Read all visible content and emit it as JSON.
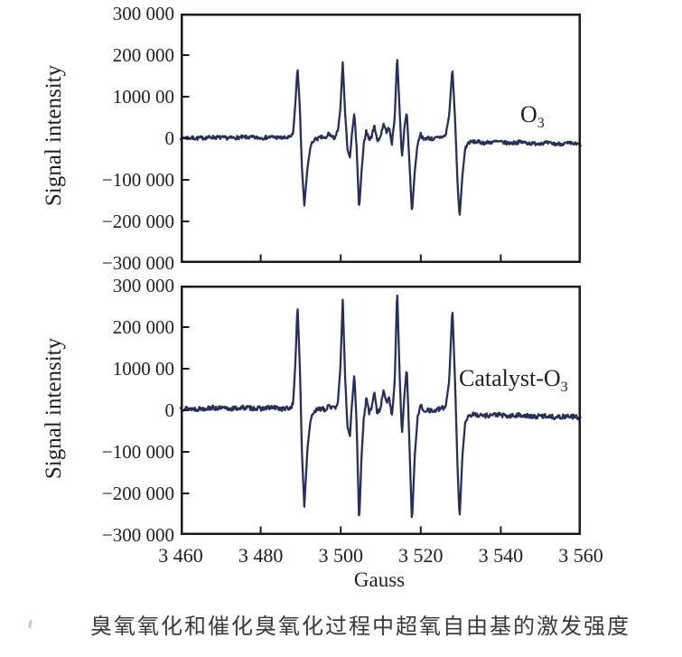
{
  "figure": {
    "ylabel": "Signal intensity",
    "xlabel": "Gauss",
    "y_ticks": [
      "300 000",
      "200 000",
      "1000 00",
      "0",
      "−100 000",
      "−200 000",
      "−300 000"
    ],
    "x_ticks": [
      "3 460",
      "3 480",
      "3 500",
      "3 520",
      "3 540",
      "3 560"
    ],
    "panels": [
      {
        "label_base": "O",
        "label_sub": "3"
      },
      {
        "label_base": "Catalyst-O",
        "label_sub": "3"
      }
    ],
    "caption": "臭氧氧化和催化臭氧化过程中超氧自由基的激发强度"
  },
  "style": {
    "curve_color": "#2b2e5c",
    "axis_color": "#1a1a1a",
    "text_color": "#1f1f1f",
    "background": "#ffffff"
  },
  "chart_data": {
    "type": "line",
    "title": "",
    "xlabel": "Gauss",
    "ylabel": "Signal intensity",
    "xlim": [
      3460,
      3560
    ],
    "ylim": [
      -300000,
      300000
    ],
    "x_tick_values": [
      3460,
      3480,
      3500,
      3520,
      3540,
      3560
    ],
    "y_tick_values": [
      300000,
      200000,
      100000,
      0,
      -100000,
      -200000,
      -300000
    ],
    "grid": false,
    "legend_position": "inside-right",
    "panels": [
      {
        "name": "O3",
        "legend": "O₃",
        "noise_amplitude": 4500,
        "noise_seed": 7,
        "keypoints": [
          [
            3460,
            2000
          ],
          [
            3464,
            0
          ],
          [
            3468,
            2500
          ],
          [
            3472,
            500
          ],
          [
            3476,
            2500
          ],
          [
            3480,
            1000
          ],
          [
            3483,
            3000
          ],
          [
            3485.5,
            500
          ],
          [
            3487.3,
            2000
          ],
          [
            3488.1,
            10000
          ],
          [
            3488.7,
            90000
          ],
          [
            3489.2,
            172000
          ],
          [
            3489.8,
            70000
          ],
          [
            3490.3,
            -70000
          ],
          [
            3490.9,
            -162000
          ],
          [
            3491.7,
            -70000
          ],
          [
            3492.5,
            -18000
          ],
          [
            3493.3,
            -4000
          ],
          [
            3494.5,
            0
          ],
          [
            3495.5,
            3000
          ],
          [
            3496.3,
            -2000
          ],
          [
            3497,
            13000
          ],
          [
            3497.7,
            3000
          ],
          [
            3498.5,
            1000
          ],
          [
            3499.3,
            18000
          ],
          [
            3499.9,
            70000
          ],
          [
            3500.5,
            183000
          ],
          [
            3501.1,
            60000
          ],
          [
            3501.7,
            -28000
          ],
          [
            3502.3,
            -46000
          ],
          [
            3502.9,
            18000
          ],
          [
            3503.4,
            62000
          ],
          [
            3504,
            -30000
          ],
          [
            3504.6,
            -172000
          ],
          [
            3505.2,
            -80000
          ],
          [
            3505.8,
            -12000
          ],
          [
            3506.4,
            20000
          ],
          [
            3507.1,
            -4000
          ],
          [
            3507.8,
            6000
          ],
          [
            3508.4,
            33000
          ],
          [
            3509.1,
            -6000
          ],
          [
            3509.9,
            3000
          ],
          [
            3510.7,
            35000
          ],
          [
            3511.4,
            16000
          ],
          [
            3512.1,
            24000
          ],
          [
            3512.8,
            -12000
          ],
          [
            3513.5,
            50000
          ],
          [
            3514.1,
            199000
          ],
          [
            3514.7,
            70000
          ],
          [
            3515.3,
            -48000
          ],
          [
            3515.9,
            25000
          ],
          [
            3516.5,
            64000
          ],
          [
            3517.1,
            -45000
          ],
          [
            3517.8,
            -180000
          ],
          [
            3518.5,
            -80000
          ],
          [
            3519.2,
            -15000
          ],
          [
            3519.9,
            12000
          ],
          [
            3520.7,
            -4000
          ],
          [
            3521.6,
            2000
          ],
          [
            3523,
            -2000
          ],
          [
            3524.5,
            1500
          ],
          [
            3526.2,
            6000
          ],
          [
            3527.1,
            55000
          ],
          [
            3527.9,
            170000
          ],
          [
            3528.6,
            40000
          ],
          [
            3529.2,
            -110000
          ],
          [
            3529.7,
            -191000
          ],
          [
            3530.4,
            -90000
          ],
          [
            3531.1,
            -25000
          ],
          [
            3531.9,
            -10000
          ],
          [
            3533.5,
            -8000
          ],
          [
            3536,
            -11000
          ],
          [
            3539,
            -8000
          ],
          [
            3542,
            -12000
          ],
          [
            3545,
            -9000
          ],
          [
            3548,
            -13000
          ],
          [
            3551,
            -11000
          ],
          [
            3554,
            -14000
          ],
          [
            3557,
            -12000
          ],
          [
            3560,
            -15000
          ]
        ]
      },
      {
        "name": "Catalyst-O3",
        "legend": "Catalyst-O₃",
        "noise_amplitude": 5500,
        "noise_seed": 13,
        "keypoints": [
          [
            3460,
            5000
          ],
          [
            3464,
            3000
          ],
          [
            3468,
            6000
          ],
          [
            3472,
            3500
          ],
          [
            3476,
            6500
          ],
          [
            3480,
            4000
          ],
          [
            3483,
            7000
          ],
          [
            3485.5,
            3500
          ],
          [
            3487.3,
            5000
          ],
          [
            3488.1,
            15000
          ],
          [
            3488.7,
            120000
          ],
          [
            3489.2,
            256000
          ],
          [
            3489.8,
            100000
          ],
          [
            3490.3,
            -100000
          ],
          [
            3490.9,
            -232000
          ],
          [
            3491.7,
            -90000
          ],
          [
            3492.5,
            -20000
          ],
          [
            3493.3,
            -3000
          ],
          [
            3494.5,
            2000
          ],
          [
            3495.5,
            6000
          ],
          [
            3496.3,
            0
          ],
          [
            3497,
            16000
          ],
          [
            3497.7,
            6000
          ],
          [
            3498.5,
            3000
          ],
          [
            3499.3,
            22000
          ],
          [
            3499.9,
            100000
          ],
          [
            3500.5,
            266000
          ],
          [
            3501.1,
            80000
          ],
          [
            3501.7,
            -40000
          ],
          [
            3502.3,
            -62000
          ],
          [
            3502.9,
            25000
          ],
          [
            3503.4,
            88000
          ],
          [
            3504,
            -40000
          ],
          [
            3504.6,
            -272000
          ],
          [
            3505.2,
            -110000
          ],
          [
            3505.8,
            -15000
          ],
          [
            3506.4,
            28000
          ],
          [
            3507.1,
            -5000
          ],
          [
            3507.8,
            8000
          ],
          [
            3508.4,
            46000
          ],
          [
            3509.1,
            -8000
          ],
          [
            3509.9,
            4000
          ],
          [
            3510.7,
            48000
          ],
          [
            3511.4,
            20000
          ],
          [
            3512.1,
            32000
          ],
          [
            3512.8,
            -15000
          ],
          [
            3513.5,
            70000
          ],
          [
            3514.1,
            293000
          ],
          [
            3514.7,
            90000
          ],
          [
            3515.3,
            -60000
          ],
          [
            3515.9,
            35000
          ],
          [
            3516.5,
            103000
          ],
          [
            3517.1,
            -60000
          ],
          [
            3517.8,
            -272000
          ],
          [
            3518.5,
            -110000
          ],
          [
            3519.2,
            -20000
          ],
          [
            3519.9,
            15000
          ],
          [
            3520.7,
            -5000
          ],
          [
            3521.6,
            3000
          ],
          [
            3523,
            -3000
          ],
          [
            3524.5,
            2000
          ],
          [
            3526.2,
            8000
          ],
          [
            3527.1,
            70000
          ],
          [
            3527.9,
            248000
          ],
          [
            3528.6,
            60000
          ],
          [
            3529.2,
            -140000
          ],
          [
            3529.7,
            -261000
          ],
          [
            3530.4,
            -110000
          ],
          [
            3531.1,
            -30000
          ],
          [
            3531.9,
            -12000
          ],
          [
            3533.5,
            -10000
          ],
          [
            3536,
            -13000
          ],
          [
            3539,
            -10000
          ],
          [
            3542,
            -15000
          ],
          [
            3545,
            -11000
          ],
          [
            3548,
            -16000
          ],
          [
            3551,
            -13000
          ],
          [
            3554,
            -17000
          ],
          [
            3557,
            -14000
          ],
          [
            3560,
            -18000
          ]
        ]
      }
    ]
  }
}
